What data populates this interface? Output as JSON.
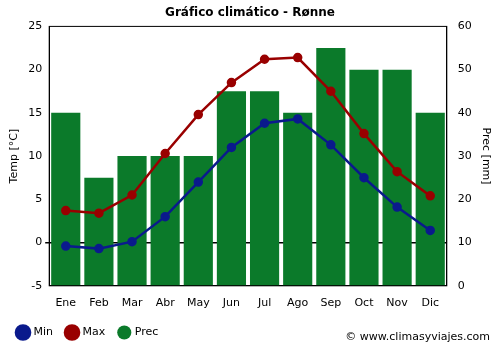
{
  "chart_data": {
    "type": "bar",
    "title": "Gráfico climático - Rønne",
    "categories": [
      "Ene",
      "Feb",
      "Mar",
      "Abr",
      "May",
      "Jun",
      "Jul",
      "Ago",
      "Sep",
      "Oct",
      "Nov",
      "Dic"
    ],
    "series": [
      {
        "name": "Prec",
        "type": "bar",
        "color": "#0b7a2a",
        "axis": "y2",
        "values": [
          40,
          25,
          30,
          30,
          30,
          45,
          45,
          40,
          55,
          50,
          50,
          40
        ]
      },
      {
        "name": "Min",
        "type": "line",
        "color": "#0a1a8c",
        "marker": "circle",
        "values": [
          -0.4,
          -0.7,
          0.1,
          3.0,
          7.0,
          11.0,
          13.8,
          14.3,
          11.3,
          7.5,
          4.1,
          1.4
        ]
      },
      {
        "name": "Max",
        "type": "line",
        "color": "#990000",
        "marker": "circle",
        "values": [
          3.7,
          3.4,
          5.5,
          10.3,
          14.8,
          18.5,
          21.2,
          21.4,
          17.5,
          12.6,
          8.2,
          5.4
        ]
      }
    ],
    "y_label": "Temp [°C]",
    "y2_label": "Prec [mm]",
    "ylim": [
      -5,
      25
    ],
    "yticks": [
      -5,
      0,
      5,
      10,
      15,
      20,
      25
    ],
    "y2lim": [
      0,
      60
    ],
    "y2ticks": [
      0,
      10,
      20,
      30,
      40,
      50,
      60
    ],
    "grid": false,
    "legend": "bottom left",
    "annotations": [
      "© www.climasyviajes.com"
    ]
  }
}
